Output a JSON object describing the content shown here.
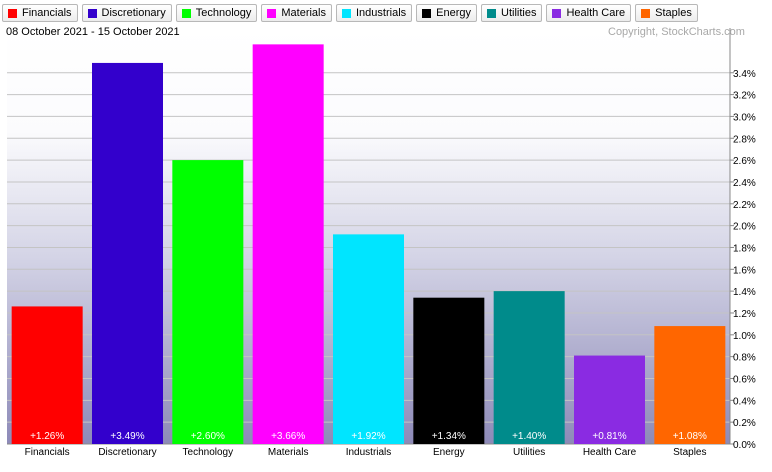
{
  "header": {
    "date_range": "08 October 2021 - 15 October 2021",
    "copyright": "Copyright, StockCharts.com"
  },
  "chart_data": {
    "type": "bar",
    "categories": [
      "Financials",
      "Discretionary",
      "Technology",
      "Materials",
      "Industrials",
      "Energy",
      "Utilities",
      "Health Care",
      "Staples"
    ],
    "values": [
      1.26,
      3.49,
      2.6,
      3.66,
      1.92,
      1.34,
      1.4,
      0.81,
      1.08
    ],
    "data_labels": [
      "+1.26%",
      "+3.49%",
      "+2.60%",
      "+3.66%",
      "+1.92%",
      "+1.34%",
      "+1.40%",
      "+0.81%",
      "+1.08%"
    ],
    "colors": [
      "#ff0000",
      "#3300cc",
      "#00ff00",
      "#ff00ff",
      "#00e5ff",
      "#000000",
      "#008b8b",
      "#8a2be2",
      "#ff6600"
    ],
    "y_ticks": [
      "0.0%",
      "0.2%",
      "0.4%",
      "0.6%",
      "0.8%",
      "1.0%",
      "1.2%",
      "1.4%",
      "1.6%",
      "1.8%",
      "2.0%",
      "2.2%",
      "2.4%",
      "2.6%",
      "2.8%",
      "3.0%",
      "3.2%",
      "3.4%"
    ],
    "ylim": [
      0,
      3.7
    ],
    "grid": true,
    "legend": "top"
  }
}
